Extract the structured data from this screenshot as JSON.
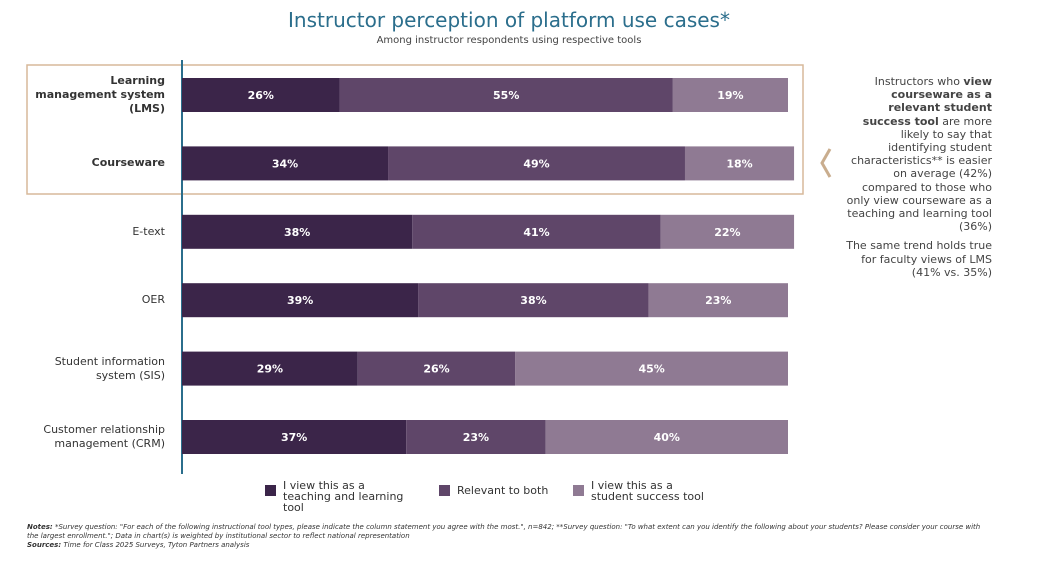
{
  "chart_data": {
    "type": "stacked-bar-horizontal",
    "title": "Instructor perception of platform use cases*",
    "subtitle": "Among instructor respondents using respective tools",
    "categories": [
      "Learning management system (LMS)",
      "Courseware",
      "E-text",
      "OER",
      "Student information system (SIS)",
      "Customer relationship management (CRM)"
    ],
    "xlim": [
      0,
      100
    ],
    "series": [
      {
        "name": "I view this as a teaching and learning tool",
        "color": "#3b2549",
        "values": [
          26,
          34,
          38,
          39,
          29,
          37
        ],
        "value_labels": [
          "26%",
          "34%",
          "38%",
          "39%",
          "29%",
          "37%"
        ]
      },
      {
        "name": "Relevant to both",
        "color": "#5f4669",
        "values": [
          55,
          49,
          41,
          38,
          26,
          23
        ],
        "value_labels": [
          "55%",
          "49%",
          "41%",
          "38%",
          "26%",
          "23%"
        ]
      },
      {
        "name": "I view this as a student success tool",
        "color": "#8f7a93",
        "values": [
          19,
          18,
          22,
          23,
          45,
          40
        ],
        "value_labels": [
          "19%",
          "18%",
          "22%",
          "23%",
          "45%",
          "40%"
        ]
      }
    ],
    "annotation": [
      [
        {
          "text": "Instructors who "
        },
        {
          "text": "view courseware as a relevant student success tool",
          "bold": true
        },
        {
          "text": " are more likely to say that identifying student characteristics** is easier on average (42%) compared to those who only view courseware as a teaching and learning tool (36%)"
        }
      ],
      [
        {
          "text": "The same trend holds true for faculty views of LMS (41% vs. 35%)"
        }
      ]
    ],
    "notes_label": "Notes:",
    "notes": "*Survey question: \"For each of the following instructional tool types, please indicate the column statement you agree with the most.\", n=842; **Survey question: \"To what extent can you identify the following about your students? Please consider your course with the largest enrollment.\"; Data in chart(s) is weighted by institutional sector to reflect national representation",
    "sources_label": "Sources:",
    "sources": "Time for Class 2025 Surveys, Tyton Partners analysis"
  }
}
